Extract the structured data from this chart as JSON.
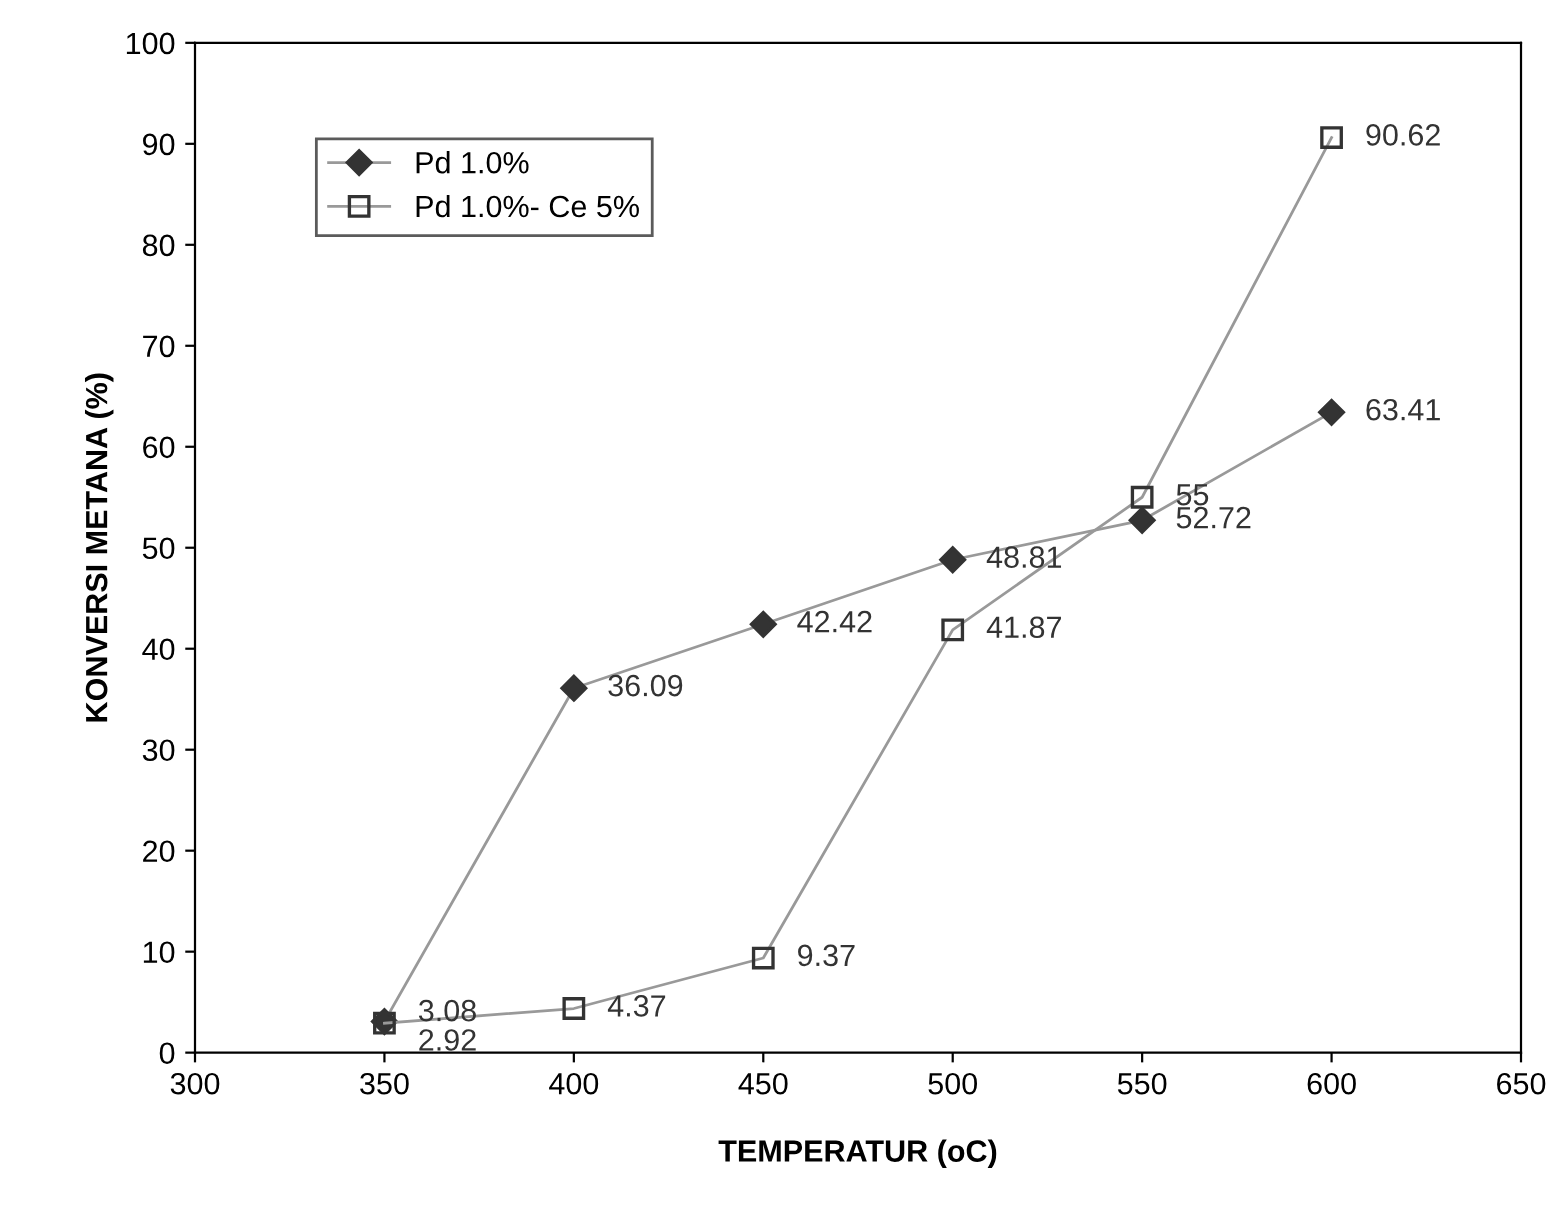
{
  "chart_data": {
    "type": "line",
    "xlabel": "TEMPERATUR (oC)",
    "ylabel": "KONVERSI METANA (%)",
    "x": [
      350,
      400,
      450,
      500,
      550,
      600
    ],
    "series": [
      {
        "name": "Pd 1.0%",
        "color": "#333333",
        "marker": "diamond",
        "values": [
          3.08,
          36.09,
          42.42,
          48.81,
          52.72,
          63.41
        ]
      },
      {
        "name": "Pd 1.0%- Ce 5%",
        "color": "#333333",
        "marker": "square",
        "values": [
          2.92,
          4.37,
          9.37,
          41.87,
          55,
          90.62
        ]
      }
    ],
    "data_labels": true,
    "xlim": [
      300,
      650
    ],
    "xticks": [
      300,
      350,
      400,
      450,
      500,
      550,
      600,
      650
    ],
    "ylim": [
      0,
      100
    ],
    "yticks": [
      0,
      10,
      20,
      30,
      40,
      50,
      60,
      70,
      80,
      90,
      100
    ],
    "legend": "top left",
    "grid": false
  }
}
